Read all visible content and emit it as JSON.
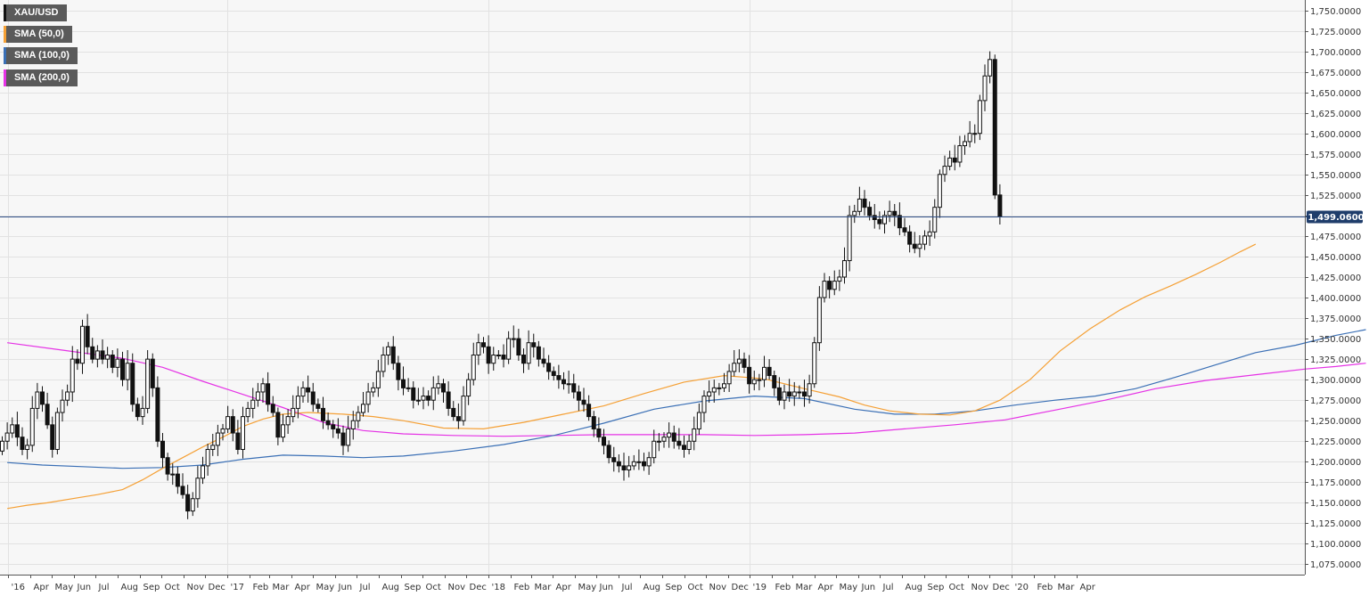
{
  "legend": [
    {
      "label": "XAU/USD",
      "color": "#111111"
    },
    {
      "label": "SMA (50,0)",
      "color": "#f5a035"
    },
    {
      "label": "SMA (100,0)",
      "color": "#3a6fb5"
    },
    {
      "label": "SMA (200,0)",
      "color": "#e532e5"
    }
  ],
  "price_badge": "1,499.0600",
  "colors": {
    "background": "#f7f7f7",
    "grid": "#e2e2e2",
    "price_line": "#2f4f86",
    "badge_bg": "#1f3d6b",
    "up_fill": "#ffffff",
    "down_fill": "#111111",
    "candle_stroke": "#111111"
  },
  "chart_data": {
    "type": "candlestick",
    "symbol": "XAU/USD",
    "timeframe": "weekly",
    "ylim": [
      1062.5,
      1762.5
    ],
    "last_price": 1499.06,
    "y_ticks": [
      "1,075.0000",
      "1,100.0000",
      "1,125.0000",
      "1,150.0000",
      "1,175.0000",
      "1,200.0000",
      "1,225.0000",
      "1,250.0000",
      "1,275.0000",
      "1,300.0000",
      "1,325.0000",
      "1,350.0000",
      "1,375.0000",
      "1,400.0000",
      "1,425.0000",
      "1,450.0000",
      "1,475.0000",
      "1,500.0000",
      "1,525.0000",
      "1,550.0000",
      "1,575.0000",
      "1,600.0000",
      "1,625.0000",
      "1,650.0000",
      "1,675.0000",
      "1,700.0000",
      "1,725.0000",
      "1,750.0000"
    ],
    "y_tick_values": [
      1075,
      1100,
      1125,
      1150,
      1175,
      1200,
      1225,
      1250,
      1275,
      1300,
      1325,
      1350,
      1375,
      1400,
      1425,
      1450,
      1475,
      1500,
      1525,
      1550,
      1575,
      1600,
      1625,
      1650,
      1675,
      1700,
      1725,
      1750
    ],
    "x_ticks": [
      "'16",
      "Apr",
      "May",
      "Jun",
      "Jul",
      "Aug",
      "Sep",
      "Oct",
      "Nov",
      "Dec",
      "'17",
      "Feb",
      "Mar",
      "Apr",
      "May",
      "Jun",
      "Jul",
      "Aug",
      "Sep",
      "Oct",
      "Nov",
      "Dec",
      "'18",
      "Feb",
      "Mar",
      "Apr",
      "May",
      "Jun",
      "Jul",
      "Aug",
      "Sep",
      "Oct",
      "Nov",
      "Dec",
      "'19",
      "Feb",
      "Mar",
      "Apr",
      "May",
      "Jun",
      "Jul",
      "Aug",
      "Sep",
      "Oct",
      "Nov",
      "Dec",
      "'20",
      "Feb",
      "Mar",
      "Apr"
    ],
    "x_tick_dates": [
      "2016-03-01",
      "2016-04-01",
      "2016-05-01",
      "2016-06-01",
      "2016-07-01",
      "2016-08-01",
      "2016-09-01",
      "2016-10-01",
      "2016-11-01",
      "2016-12-01",
      "2017-01-01",
      "2017-02-01",
      "2017-03-01",
      "2017-04-01",
      "2017-05-01",
      "2017-06-01",
      "2017-07-01",
      "2017-08-01",
      "2017-09-01",
      "2017-10-01",
      "2017-11-01",
      "2017-12-01",
      "2018-01-01",
      "2018-02-01",
      "2018-03-01",
      "2018-04-01",
      "2018-05-01",
      "2018-06-01",
      "2018-07-01",
      "2018-08-01",
      "2018-09-01",
      "2018-10-01",
      "2018-11-01",
      "2018-12-01",
      "2019-01-01",
      "2019-02-01",
      "2019-03-01",
      "2019-04-01",
      "2019-05-01",
      "2019-06-01",
      "2019-07-01",
      "2019-08-01",
      "2019-09-01",
      "2019-10-01",
      "2019-11-01",
      "2019-12-01",
      "2020-01-01",
      "2020-02-01",
      "2020-03-01",
      "2020-04-01"
    ],
    "x_ticks_major": [
      "'16",
      "'17",
      "'18",
      "'19",
      "'20"
    ],
    "closes": [
      1225,
      1235,
      1245,
      1230,
      1215,
      1220,
      1265,
      1285,
      1270,
      1245,
      1215,
      1260,
      1275,
      1285,
      1325,
      1320,
      1365,
      1340,
      1325,
      1335,
      1325,
      1330,
      1315,
      1325,
      1300,
      1320,
      1270,
      1255,
      1265,
      1325,
      1290,
      1225,
      1205,
      1185,
      1185,
      1170,
      1160,
      1140,
      1155,
      1180,
      1195,
      1215,
      1220,
      1235,
      1240,
      1255,
      1235,
      1215,
      1255,
      1265,
      1275,
      1285,
      1295,
      1270,
      1260,
      1230,
      1245,
      1255,
      1265,
      1280,
      1290,
      1285,
      1270,
      1265,
      1250,
      1245,
      1240,
      1235,
      1220,
      1240,
      1250,
      1260,
      1270,
      1285,
      1290,
      1310,
      1330,
      1340,
      1320,
      1300,
      1290,
      1290,
      1275,
      1275,
      1280,
      1275,
      1290,
      1295,
      1285,
      1265,
      1255,
      1250,
      1280,
      1300,
      1330,
      1345,
      1340,
      1320,
      1330,
      1330,
      1325,
      1350,
      1350,
      1330,
      1320,
      1345,
      1340,
      1325,
      1320,
      1310,
      1305,
      1300,
      1295,
      1295,
      1285,
      1275,
      1270,
      1255,
      1240,
      1230,
      1220,
      1205,
      1200,
      1195,
      1190,
      1195,
      1200,
      1200,
      1195,
      1205,
      1225,
      1225,
      1230,
      1235,
      1225,
      1220,
      1215,
      1225,
      1240,
      1260,
      1280,
      1285,
      1290,
      1290,
      1295,
      1310,
      1320,
      1325,
      1315,
      1295,
      1300,
      1300,
      1315,
      1305,
      1290,
      1275,
      1285,
      1280,
      1285,
      1285,
      1280,
      1295,
      1345,
      1400,
      1420,
      1410,
      1420,
      1425,
      1445,
      1500,
      1505,
      1520,
      1510,
      1500,
      1495,
      1490,
      1500,
      1505,
      1500,
      1485,
      1480,
      1465,
      1460,
      1465,
      1475,
      1480,
      1510,
      1550,
      1560,
      1570,
      1565,
      1585,
      1590,
      1600,
      1600,
      1640,
      1670,
      1690,
      1525,
      1499
    ],
    "sma50_anchors": [
      [
        1,
        1143
      ],
      [
        5,
        1147
      ],
      [
        9,
        1150
      ],
      [
        15,
        1156
      ],
      [
        19,
        1160
      ],
      [
        24,
        1166
      ],
      [
        28,
        1178
      ],
      [
        32,
        1192
      ],
      [
        36,
        1205
      ],
      [
        40,
        1218
      ],
      [
        44,
        1230
      ],
      [
        48,
        1243
      ],
      [
        52,
        1252
      ],
      [
        56,
        1258
      ],
      [
        61,
        1260
      ],
      [
        68,
        1258
      ],
      [
        74,
        1255
      ],
      [
        80,
        1250
      ],
      [
        88,
        1241
      ],
      [
        96,
        1240
      ],
      [
        104,
        1248
      ],
      [
        112,
        1258
      ],
      [
        120,
        1268
      ],
      [
        128,
        1283
      ],
      [
        136,
        1297
      ],
      [
        144,
        1305
      ],
      [
        152,
        1301
      ],
      [
        160,
        1289
      ],
      [
        167,
        1279
      ],
      [
        172,
        1269
      ],
      [
        177,
        1262
      ],
      [
        183,
        1258
      ],
      [
        189,
        1257
      ],
      [
        194,
        1262
      ],
      [
        199,
        1275
      ],
      [
        205,
        1300
      ],
      [
        211,
        1335
      ],
      [
        217,
        1362
      ],
      [
        223,
        1385
      ],
      [
        228,
        1401
      ],
      [
        233,
        1414
      ],
      [
        238,
        1428
      ],
      [
        243,
        1443
      ],
      [
        247,
        1456
      ],
      [
        250,
        1465
      ]
    ],
    "sma100_anchors": [
      [
        1,
        1199
      ],
      [
        8,
        1196
      ],
      [
        16,
        1194
      ],
      [
        24,
        1192
      ],
      [
        32,
        1193
      ],
      [
        40,
        1196
      ],
      [
        48,
        1203
      ],
      [
        56,
        1208
      ],
      [
        64,
        1207
      ],
      [
        72,
        1205
      ],
      [
        80,
        1207
      ],
      [
        90,
        1213
      ],
      [
        100,
        1221
      ],
      [
        110,
        1232
      ],
      [
        120,
        1247
      ],
      [
        130,
        1264
      ],
      [
        140,
        1274
      ],
      [
        150,
        1280
      ],
      [
        160,
        1277
      ],
      [
        170,
        1264
      ],
      [
        178,
        1258
      ],
      [
        186,
        1258
      ],
      [
        194,
        1262
      ],
      [
        202,
        1269
      ],
      [
        210,
        1275
      ],
      [
        218,
        1280
      ],
      [
        226,
        1289
      ],
      [
        234,
        1303
      ],
      [
        242,
        1318
      ],
      [
        250,
        1333
      ],
      [
        258,
        1342
      ],
      [
        266,
        1354
      ],
      [
        272,
        1361
      ]
    ],
    "sma200_anchors": [
      [
        1,
        1345
      ],
      [
        12,
        1336
      ],
      [
        24,
        1326
      ],
      [
        32,
        1315
      ],
      [
        40,
        1298
      ],
      [
        48,
        1282
      ],
      [
        56,
        1266
      ],
      [
        64,
        1248
      ],
      [
        72,
        1238
      ],
      [
        80,
        1234
      ],
      [
        90,
        1232
      ],
      [
        100,
        1231
      ],
      [
        110,
        1232
      ],
      [
        120,
        1233
      ],
      [
        130,
        1233
      ],
      [
        140,
        1233
      ],
      [
        150,
        1232
      ],
      [
        160,
        1233
      ],
      [
        170,
        1235
      ],
      [
        180,
        1240
      ],
      [
        190,
        1245
      ],
      [
        200,
        1251
      ],
      [
        210,
        1263
      ],
      [
        220,
        1275
      ],
      [
        230,
        1289
      ],
      [
        240,
        1299
      ],
      [
        250,
        1306
      ],
      [
        260,
        1313
      ],
      [
        266,
        1316
      ],
      [
        272,
        1320
      ]
    ]
  }
}
